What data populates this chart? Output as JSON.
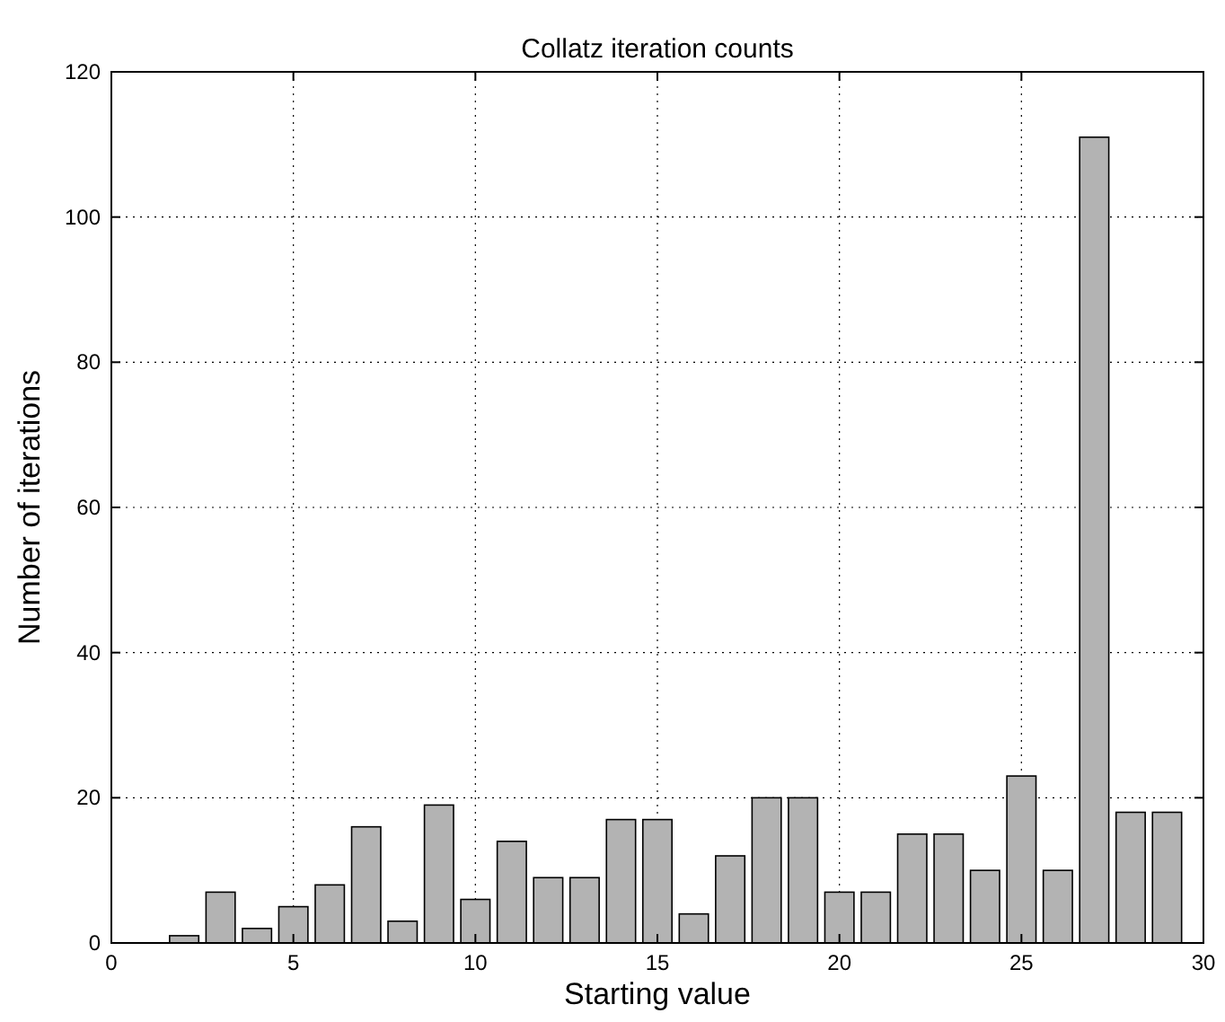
{
  "chart_data": {
    "type": "bar",
    "title": "Collatz iteration counts",
    "xlabel": "Starting value",
    "ylabel": "Number of iterations",
    "x": [
      2,
      3,
      4,
      5,
      6,
      7,
      8,
      9,
      10,
      11,
      12,
      13,
      14,
      15,
      16,
      17,
      18,
      19,
      20,
      21,
      22,
      23,
      24,
      25,
      26,
      27,
      28,
      29
    ],
    "values": [
      1,
      7,
      2,
      5,
      8,
      16,
      3,
      19,
      6,
      14,
      9,
      9,
      17,
      17,
      4,
      12,
      20,
      20,
      7,
      7,
      15,
      15,
      10,
      23,
      10,
      111,
      18,
      18
    ],
    "color": "#b3b3b3",
    "xlim": [
      0,
      30
    ],
    "xticks": [
      0,
      5,
      10,
      15,
      20,
      25,
      30
    ],
    "ylim": [
      0,
      120
    ],
    "yticks": [
      0,
      20,
      40,
      60,
      80,
      100,
      120
    ],
    "grid": true
  }
}
